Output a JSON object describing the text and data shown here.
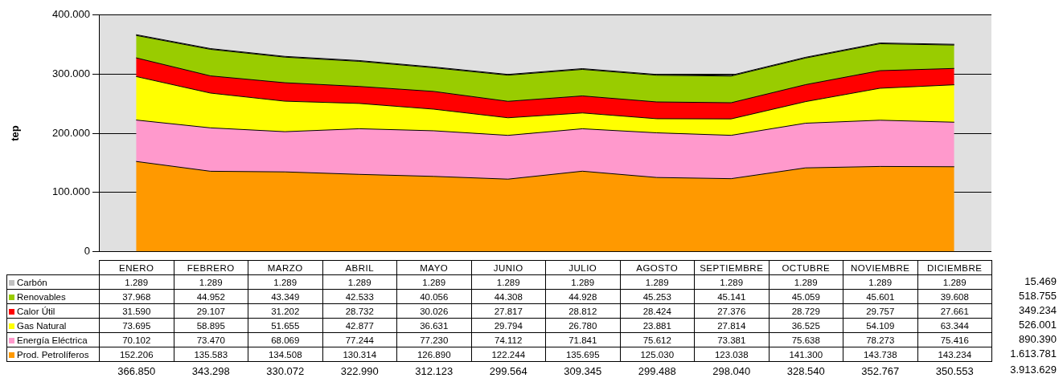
{
  "chart_data": {
    "type": "area",
    "stacked": true,
    "ylabel": "tep",
    "categories": [
      "ENERO",
      "FEBRERO",
      "MARZO",
      "ABRIL",
      "MAYO",
      "JUNIO",
      "JULIO",
      "AGOSTO",
      "SEPTIEMBRE",
      "OCTUBRE",
      "NOVIEMBRE",
      "DICIEMBRE"
    ],
    "series": [
      {
        "name": "Prod. Petrolíferos",
        "color": "#ff9900",
        "values": [
          152206,
          135583,
          134508,
          130314,
          126890,
          122244,
          135695,
          125030,
          123038,
          141300,
          143738,
          143234
        ],
        "value_labels": [
          "152.206",
          "135.583",
          "134.508",
          "130.314",
          "126.890",
          "122.244",
          "135.695",
          "125.030",
          "123.038",
          "141.300",
          "143.738",
          "143.234"
        ]
      },
      {
        "name": "Energía Eléctrica",
        "color": "#ff99cc",
        "values": [
          70102,
          73470,
          68069,
          77244,
          77230,
          74112,
          71841,
          75612,
          73381,
          75638,
          78273,
          75416
        ],
        "value_labels": [
          "70.102",
          "73.470",
          "68.069",
          "77.244",
          "77.230",
          "74.112",
          "71.841",
          "75.612",
          "73.381",
          "75.638",
          "78.273",
          "75.416"
        ]
      },
      {
        "name": "Gas Natural",
        "color": "#ffff00",
        "values": [
          73695,
          58895,
          51655,
          42877,
          36631,
          29794,
          26780,
          23881,
          27814,
          36525,
          54109,
          63344
        ],
        "value_labels": [
          "73.695",
          "58.895",
          "51.655",
          "42.877",
          "36.631",
          "29.794",
          "26.780",
          "23.881",
          "27.814",
          "36.525",
          "54.109",
          "63.344"
        ]
      },
      {
        "name": "Calor Útil",
        "color": "#ff0000",
        "values": [
          31590,
          29107,
          31202,
          28732,
          30026,
          27817,
          28812,
          28424,
          27376,
          28729,
          29757,
          27661
        ],
        "value_labels": [
          "31.590",
          "29.107",
          "31.202",
          "28.732",
          "30.026",
          "27.817",
          "28.812",
          "28.424",
          "27.376",
          "28.729",
          "29.757",
          "27.661"
        ]
      },
      {
        "name": "Renovables",
        "color": "#99cc00",
        "values": [
          37968,
          44952,
          43349,
          42533,
          40056,
          44308,
          44928,
          45253,
          45141,
          45059,
          45601,
          39608
        ],
        "value_labels": [
          "37.968",
          "44.952",
          "43.349",
          "42.533",
          "40.056",
          "44.308",
          "44.928",
          "45.253",
          "45.141",
          "45.059",
          "45.601",
          "39.608"
        ]
      },
      {
        "name": "Carbón",
        "color": "#c0c0c0",
        "values": [
          1289,
          1289,
          1289,
          1289,
          1289,
          1289,
          1289,
          1289,
          1289,
          1289,
          1289,
          1289
        ],
        "value_labels": [
          "1.289",
          "1.289",
          "1.289",
          "1.289",
          "1.289",
          "1.289",
          "1.289",
          "1.289",
          "1.289",
          "1.289",
          "1.289",
          "1.289"
        ]
      }
    ],
    "annotations": [
      "15.469",
      "518.755",
      "349.234",
      "526.001",
      "890.390",
      "1.613.781",
      "366.850",
      "343.298",
      "330.072",
      "322.990",
      "312.123",
      "299.564",
      "309.345",
      "299.488",
      "298.040",
      "328.540",
      "352.767",
      "350.553",
      "3.913.629"
    ],
    "ylim": [
      0,
      400000
    ],
    "yticks": [
      {
        "value": 0,
        "label": "0"
      },
      {
        "value": 100000,
        "label": "100.000"
      },
      {
        "value": 200000,
        "label": "200.000"
      },
      {
        "value": 300000,
        "label": "300.000"
      },
      {
        "value": 400000,
        "label": "400.000"
      }
    ],
    "grid": "y",
    "legend": "bottom"
  }
}
